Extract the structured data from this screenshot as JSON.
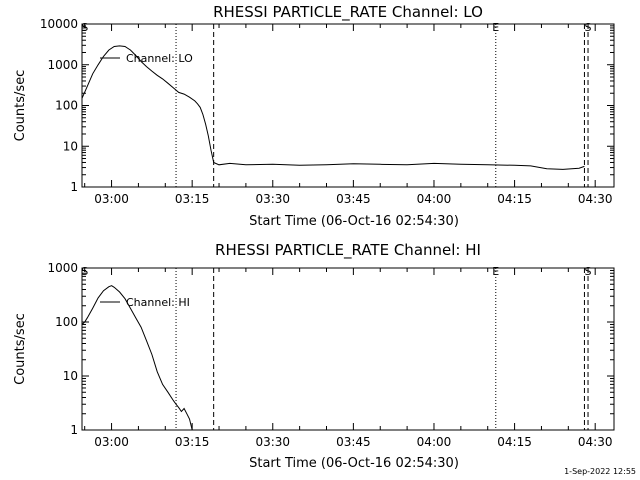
{
  "chart_data": [
    {
      "type": "line",
      "title": "RHESSI PARTICLE_RATE Channel: LO",
      "xlabel": "Start Time (06-Oct-16 02:54:30)",
      "ylabel": "Counts/sec",
      "yscale": "log",
      "ylim": [
        1,
        10000
      ],
      "xlim": [
        "02:54:30",
        "04:33:30"
      ],
      "xticks": [
        "03:00",
        "03:15",
        "03:30",
        "03:45",
        "04:00",
        "04:15",
        "04:30"
      ],
      "yticks": [
        "1",
        "10",
        "100",
        "1000",
        "10000"
      ],
      "legend": "top-left",
      "series": [
        {
          "name": "Channel: LO",
          "x": [
            "02:54:30",
            "02:55:30",
            "02:56:30",
            "02:57:30",
            "02:58:30",
            "02:59:30",
            "03:00:30",
            "03:01:30",
            "03:02:30",
            "03:03:30",
            "03:04:30",
            "03:05:30",
            "03:06:30",
            "03:07:30",
            "03:08:30",
            "03:09:30",
            "03:10:30",
            "03:11:30",
            "03:12:30",
            "03:13:30",
            "03:14:30",
            "03:15:30",
            "03:16:00",
            "03:16:30",
            "03:17:00",
            "03:17:30",
            "03:18:00",
            "03:18:30",
            "03:19:00",
            "03:20:00",
            "03:22:00",
            "03:25:00",
            "03:30:00",
            "03:35:00",
            "03:40:00",
            "03:45:00",
            "03:50:00",
            "03:55:00",
            "04:00:00",
            "04:05:00",
            "04:10:00",
            "04:15:00",
            "04:18:00",
            "04:21:00",
            "04:24:00",
            "04:27:00",
            "04:28:00"
          ],
          "y": [
            150,
            300,
            600,
            1000,
            1600,
            2300,
            2800,
            2900,
            2800,
            2300,
            1700,
            1200,
            900,
            700,
            550,
            450,
            350,
            270,
            210,
            190,
            160,
            130,
            110,
            90,
            60,
            35,
            18,
            8,
            4,
            3.5,
            3.8,
            3.5,
            3.6,
            3.4,
            3.5,
            3.7,
            3.6,
            3.5,
            3.8,
            3.6,
            3.5,
            3.4,
            3.3,
            2.8,
            2.7,
            2.9,
            3.2
          ]
        }
      ],
      "markers": [
        {
          "x": "02:55:00",
          "label": "S",
          "style": "none"
        },
        {
          "x": "03:12:00",
          "style": "dotted"
        },
        {
          "x": "03:19:00",
          "style": "dashed"
        },
        {
          "x": "04:11:30",
          "label": "E",
          "style": "dotted"
        },
        {
          "x": "04:28:00",
          "style": "dashed"
        },
        {
          "x": "04:28:40",
          "label": "S",
          "style": "dashed"
        }
      ]
    },
    {
      "type": "line",
      "title": "RHESSI PARTICLE_RATE Channel: HI",
      "xlabel": "Start Time (06-Oct-16 02:54:30)",
      "ylabel": "Counts/sec",
      "yscale": "log",
      "ylim": [
        1,
        1000
      ],
      "xlim": [
        "02:54:30",
        "04:33:30"
      ],
      "xticks": [
        "03:00",
        "03:15",
        "03:30",
        "03:45",
        "04:00",
        "04:15",
        "04:30"
      ],
      "yticks": [
        "1",
        "10",
        "100",
        "1000"
      ],
      "legend": "top-left",
      "series": [
        {
          "name": "Channel: HI",
          "x": [
            "02:54:30",
            "02:55:00",
            "02:55:30",
            "02:56:30",
            "02:57:30",
            "02:58:30",
            "02:59:30",
            "03:00:00",
            "03:00:30",
            "03:01:30",
            "03:02:30",
            "03:03:30",
            "03:04:30",
            "03:05:30",
            "03:06:30",
            "03:07:30",
            "03:08:30",
            "03:09:30",
            "03:10:30",
            "03:11:30",
            "03:12:00",
            "03:12:30",
            "03:13:00",
            "03:13:30",
            "03:14:00",
            "03:14:30",
            "03:15:00"
          ],
          "y": [
            90,
            100,
            120,
            180,
            280,
            380,
            450,
            470,
            440,
            360,
            270,
            180,
            120,
            80,
            45,
            25,
            12,
            7,
            5,
            3.5,
            3.0,
            2.6,
            2.2,
            2.5,
            2.0,
            1.6,
            1.0
          ]
        }
      ],
      "markers": [
        {
          "x": "02:55:00",
          "label": "S",
          "style": "none"
        },
        {
          "x": "03:12:00",
          "style": "dotted"
        },
        {
          "x": "03:19:00",
          "style": "dashed"
        },
        {
          "x": "04:11:30",
          "label": "E",
          "style": "dotted"
        },
        {
          "x": "04:28:00",
          "style": "dashed"
        },
        {
          "x": "04:28:40",
          "label": "S",
          "style": "dashed"
        }
      ]
    }
  ],
  "footer": {
    "timestamp": "1-Sep-2022 12:55"
  }
}
